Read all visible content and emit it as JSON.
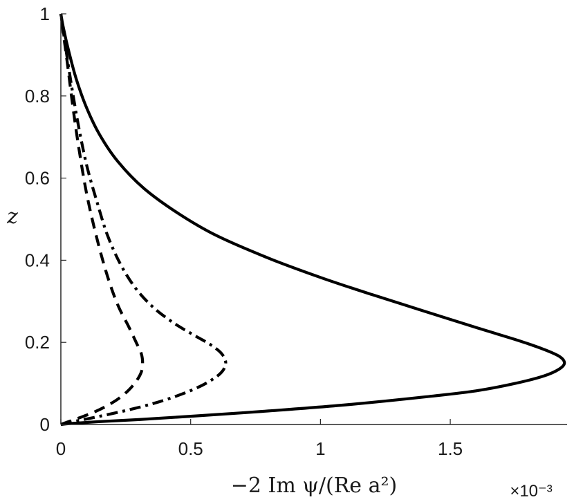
{
  "chart_data": {
    "type": "line",
    "xlabel": "−2 Im ψ/(Re a²)",
    "ylabel": "z",
    "x_exponent_label": "×10⁻³",
    "xlim": [
      0,
      1.95
    ],
    "ylim": [
      0,
      1
    ],
    "x_ticks": [
      0,
      0.5,
      1,
      1.5
    ],
    "x_tick_labels": [
      "0",
      "0.5",
      "1",
      "1.5"
    ],
    "y_ticks": [
      0,
      0.2,
      0.4,
      0.6,
      0.8,
      1
    ],
    "y_tick_labels": [
      "0",
      "0.2",
      "0.4",
      "0.6",
      "0.8",
      "1"
    ],
    "grid": false,
    "series": [
      {
        "style": "solid",
        "color": "#000000",
        "points": [
          [
            0,
            0
          ],
          [
            0.05,
            0.003
          ],
          [
            0.15,
            0.007
          ],
          [
            0.3,
            0.012
          ],
          [
            0.5,
            0.02
          ],
          [
            0.8,
            0.033
          ],
          [
            1.1,
            0.048
          ],
          [
            1.4,
            0.067
          ],
          [
            1.6,
            0.082
          ],
          [
            1.75,
            0.1
          ],
          [
            1.86,
            0.118
          ],
          [
            1.92,
            0.135
          ],
          [
            1.94,
            0.15
          ],
          [
            1.92,
            0.166
          ],
          [
            1.86,
            0.183
          ],
          [
            1.76,
            0.205
          ],
          [
            1.6,
            0.236
          ],
          [
            1.4,
            0.276
          ],
          [
            1.2,
            0.316
          ],
          [
            1.0,
            0.358
          ],
          [
            0.8,
            0.405
          ],
          [
            0.6,
            0.46
          ],
          [
            0.45,
            0.515
          ],
          [
            0.32,
            0.575
          ],
          [
            0.22,
            0.64
          ],
          [
            0.15,
            0.705
          ],
          [
            0.1,
            0.77
          ],
          [
            0.06,
            0.84
          ],
          [
            0.03,
            0.91
          ],
          [
            0.01,
            0.965
          ],
          [
            0,
            1.0
          ]
        ]
      },
      {
        "style": "dashdot",
        "color": "#000000",
        "points": [
          [
            0,
            0
          ],
          [
            0.03,
            0.005
          ],
          [
            0.08,
            0.011
          ],
          [
            0.15,
            0.02
          ],
          [
            0.25,
            0.034
          ],
          [
            0.35,
            0.05
          ],
          [
            0.44,
            0.068
          ],
          [
            0.52,
            0.088
          ],
          [
            0.58,
            0.108
          ],
          [
            0.62,
            0.128
          ],
          [
            0.635,
            0.15
          ],
          [
            0.62,
            0.172
          ],
          [
            0.58,
            0.193
          ],
          [
            0.52,
            0.215
          ],
          [
            0.44,
            0.245
          ],
          [
            0.36,
            0.283
          ],
          [
            0.29,
            0.33
          ],
          [
            0.23,
            0.39
          ],
          [
            0.18,
            0.46
          ],
          [
            0.14,
            0.54
          ],
          [
            0.1,
            0.63
          ],
          [
            0.07,
            0.72
          ],
          [
            0.045,
            0.81
          ],
          [
            0.025,
            0.89
          ],
          [
            0.01,
            0.955
          ],
          [
            0,
            1.0
          ]
        ]
      },
      {
        "style": "dashed",
        "color": "#000000",
        "points": [
          [
            0,
            0
          ],
          [
            0.03,
            0.007
          ],
          [
            0.07,
            0.016
          ],
          [
            0.12,
            0.028
          ],
          [
            0.17,
            0.043
          ],
          [
            0.22,
            0.062
          ],
          [
            0.26,
            0.083
          ],
          [
            0.29,
            0.105
          ],
          [
            0.31,
            0.128
          ],
          [
            0.315,
            0.15
          ],
          [
            0.31,
            0.172
          ],
          [
            0.29,
            0.2
          ],
          [
            0.26,
            0.24
          ],
          [
            0.22,
            0.29
          ],
          [
            0.18,
            0.36
          ],
          [
            0.14,
            0.45
          ],
          [
            0.1,
            0.56
          ],
          [
            0.07,
            0.67
          ],
          [
            0.045,
            0.78
          ],
          [
            0.025,
            0.88
          ],
          [
            0.01,
            0.95
          ],
          [
            0,
            1.0
          ]
        ]
      }
    ]
  }
}
